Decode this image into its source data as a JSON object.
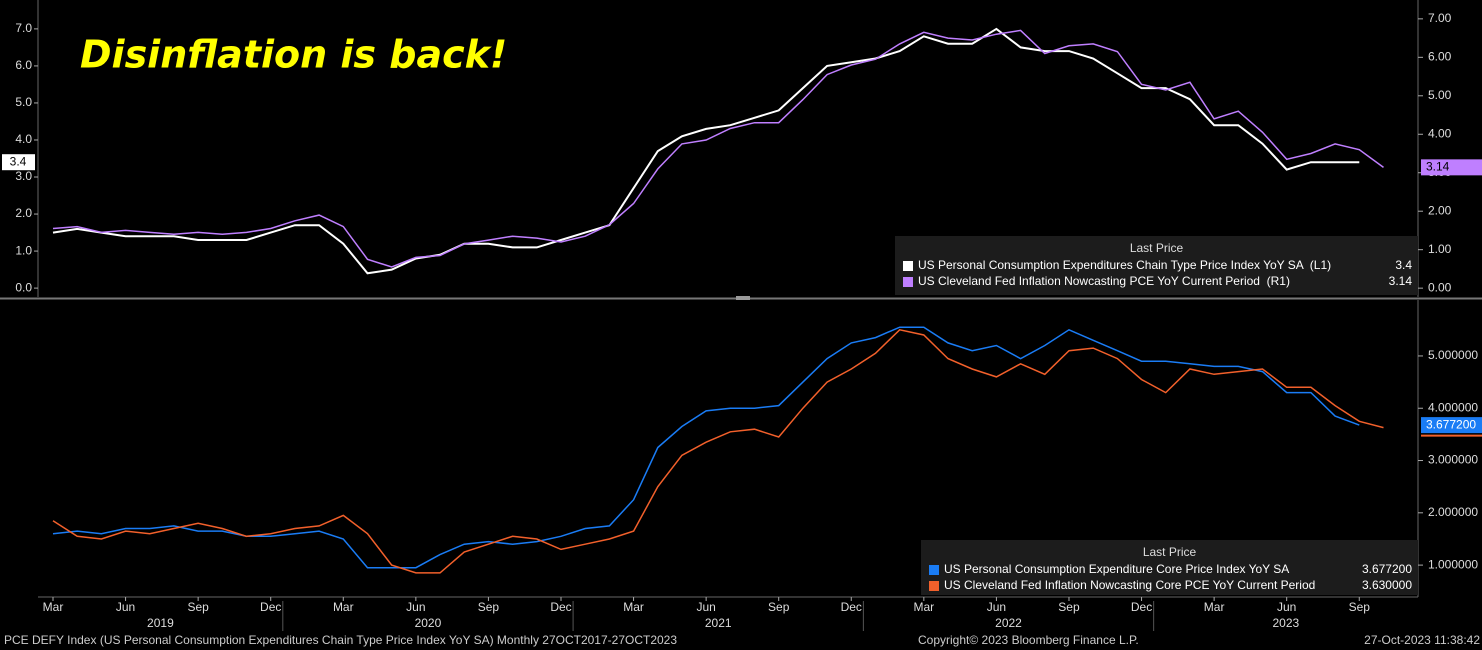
{
  "chart_data": [
    {
      "type": "line",
      "annotation": "Disinflation is back!",
      "x": [
        "2019-03",
        "2019-04",
        "2019-05",
        "2019-06",
        "2019-07",
        "2019-08",
        "2019-09",
        "2019-10",
        "2019-11",
        "2019-12",
        "2020-01",
        "2020-02",
        "2020-03",
        "2020-04",
        "2020-05",
        "2020-06",
        "2020-07",
        "2020-08",
        "2020-09",
        "2020-10",
        "2020-11",
        "2020-12",
        "2021-01",
        "2021-02",
        "2021-03",
        "2021-04",
        "2021-05",
        "2021-06",
        "2021-07",
        "2021-08",
        "2021-09",
        "2021-10",
        "2021-11",
        "2021-12",
        "2022-01",
        "2022-02",
        "2022-03",
        "2022-04",
        "2022-05",
        "2022-06",
        "2022-07",
        "2022-08",
        "2022-09",
        "2022-10",
        "2022-11",
        "2022-12",
        "2023-01",
        "2023-02",
        "2023-03",
        "2023-04",
        "2023-05",
        "2023-06",
        "2023-07",
        "2023-08",
        "2023-09",
        "2023-10"
      ],
      "ylim": [
        -0.24,
        7.78
      ],
      "yticks": [
        {
          "value": 0,
          "label": "0.0"
        },
        {
          "value": 1,
          "label": "1.0"
        },
        {
          "value": 2,
          "label": "2.0"
        },
        {
          "value": 3,
          "label": "3.0"
        },
        {
          "value": 4,
          "label": "4.0"
        },
        {
          "value": 5,
          "label": "5.0"
        },
        {
          "value": 6,
          "label": "6.0"
        },
        {
          "value": 7,
          "label": "7.0"
        }
      ],
      "y2lim": [
        -0.23,
        7.49
      ],
      "y2ticks": [
        {
          "value": 0,
          "label": "0.00"
        },
        {
          "value": 1,
          "label": "1.00"
        },
        {
          "value": 2,
          "label": "2.00"
        },
        {
          "value": 3,
          "label": "3.00"
        },
        {
          "value": 4,
          "label": "4.00"
        },
        {
          "value": 5,
          "label": "5.00"
        },
        {
          "value": 6,
          "label": "6.00"
        },
        {
          "value": 7,
          "label": "7.00"
        }
      ],
      "legend_title": "Last Price",
      "series": [
        {
          "name": "US Personal Consumption Expenditures Chain Type Price Index YoY SA  (L1)",
          "color": "#ffffff",
          "axis": "y",
          "last_label": "3.4",
          "values": [
            1.5,
            1.6,
            1.5,
            1.4,
            1.4,
            1.4,
            1.3,
            1.3,
            1.3,
            1.5,
            1.7,
            1.7,
            1.2,
            0.4,
            0.5,
            0.8,
            0.9,
            1.2,
            1.2,
            1.1,
            1.1,
            1.3,
            1.5,
            1.7,
            2.7,
            3.7,
            4.1,
            4.3,
            4.4,
            4.6,
            4.8,
            5.4,
            6.0,
            6.1,
            6.2,
            6.4,
            6.8,
            6.6,
            6.6,
            7.0,
            6.5,
            6.4,
            6.4,
            6.2,
            5.8,
            5.4,
            5.4,
            5.1,
            4.4,
            4.4,
            3.9,
            3.2,
            3.4,
            3.4,
            3.4,
            null
          ]
        },
        {
          "name": "US Cleveland Fed Inflation Nowcasting PCE YoY Current Period  (R1)",
          "color": "#bf7fff",
          "axis": "y2",
          "last_label": "3.14",
          "values": [
            1.55,
            1.6,
            1.45,
            1.5,
            1.45,
            1.4,
            1.45,
            1.4,
            1.45,
            1.55,
            1.75,
            1.9,
            1.6,
            0.75,
            0.55,
            0.8,
            0.85,
            1.15,
            1.25,
            1.35,
            1.3,
            1.2,
            1.35,
            1.65,
            2.2,
            3.1,
            3.75,
            3.85,
            4.15,
            4.3,
            4.3,
            4.9,
            5.55,
            5.8,
            5.95,
            6.35,
            6.65,
            6.5,
            6.45,
            6.6,
            6.7,
            6.1,
            6.3,
            6.35,
            6.15,
            5.3,
            5.15,
            5.35,
            4.4,
            4.6,
            4.05,
            3.35,
            3.5,
            3.75,
            3.6,
            3.14
          ]
        }
      ]
    },
    {
      "type": "line",
      "x": [
        "2019-03",
        "2019-04",
        "2019-05",
        "2019-06",
        "2019-07",
        "2019-08",
        "2019-09",
        "2019-10",
        "2019-11",
        "2019-12",
        "2020-01",
        "2020-02",
        "2020-03",
        "2020-04",
        "2020-05",
        "2020-06",
        "2020-07",
        "2020-08",
        "2020-09",
        "2020-10",
        "2020-11",
        "2020-12",
        "2021-01",
        "2021-02",
        "2021-03",
        "2021-04",
        "2021-05",
        "2021-06",
        "2021-07",
        "2021-08",
        "2021-09",
        "2021-10",
        "2021-11",
        "2021-12",
        "2022-01",
        "2022-02",
        "2022-03",
        "2022-04",
        "2022-05",
        "2022-06",
        "2022-07",
        "2022-08",
        "2022-09",
        "2022-10",
        "2022-11",
        "2022-12",
        "2023-01",
        "2023-02",
        "2023-03",
        "2023-04",
        "2023-05",
        "2023-06",
        "2023-07",
        "2023-08",
        "2023-09",
        "2023-10"
      ],
      "y2lim": [
        0.39,
        6.07
      ],
      "y2ticks": [
        {
          "value": 1,
          "label": "1.000000"
        },
        {
          "value": 2,
          "label": "2.000000"
        },
        {
          "value": 3,
          "label": "3.000000"
        },
        {
          "value": 4,
          "label": "4.000000"
        },
        {
          "value": 5,
          "label": "5.000000"
        }
      ],
      "xticks": [
        {
          "value": "2019-03",
          "label": "Mar"
        },
        {
          "value": "2019-06",
          "label": "Jun"
        },
        {
          "value": "2019-09",
          "label": "Sep"
        },
        {
          "value": "2019-12",
          "label": "Dec"
        },
        {
          "value": "2020-03",
          "label": "Mar"
        },
        {
          "value": "2020-06",
          "label": "Jun"
        },
        {
          "value": "2020-09",
          "label": "Sep"
        },
        {
          "value": "2020-12",
          "label": "Dec"
        },
        {
          "value": "2021-03",
          "label": "Mar"
        },
        {
          "value": "2021-06",
          "label": "Jun"
        },
        {
          "value": "2021-09",
          "label": "Sep"
        },
        {
          "value": "2021-12",
          "label": "Dec"
        },
        {
          "value": "2022-03",
          "label": "Mar"
        },
        {
          "value": "2022-06",
          "label": "Jun"
        },
        {
          "value": "2022-09",
          "label": "Sep"
        },
        {
          "value": "2022-12",
          "label": "Dec"
        },
        {
          "value": "2023-03",
          "label": "Mar"
        },
        {
          "value": "2023-06",
          "label": "Jun"
        },
        {
          "value": "2023-09",
          "label": "Sep"
        }
      ],
      "years": [
        "2019",
        "2020",
        "2021",
        "2022",
        "2023"
      ],
      "legend_title": "Last Price",
      "series": [
        {
          "name": "US Personal Consumption Expenditure Core Price Index YoY SA",
          "color": "#1a7cf5",
          "axis": "y2",
          "last_label": "3.677200",
          "values": [
            1.6,
            1.65,
            1.6,
            1.7,
            1.7,
            1.75,
            1.65,
            1.65,
            1.55,
            1.55,
            1.6,
            1.65,
            1.5,
            0.95,
            0.95,
            0.95,
            1.2,
            1.4,
            1.45,
            1.4,
            1.45,
            1.55,
            1.7,
            1.75,
            2.25,
            3.25,
            3.65,
            3.95,
            4.0,
            4.0,
            4.05,
            4.5,
            4.95,
            5.25,
            5.35,
            5.55,
            5.55,
            5.25,
            5.1,
            5.2,
            4.95,
            5.2,
            5.5,
            5.3,
            5.1,
            4.9,
            4.9,
            4.85,
            4.8,
            4.8,
            4.7,
            4.3,
            4.3,
            3.85,
            3.6772,
            null
          ]
        },
        {
          "name": "US Cleveland Fed Inflation Nowcasting Core PCE YoY Current Period",
          "color": "#f2602b",
          "axis": "y2",
          "last_label": "3.630000",
          "values": [
            1.85,
            1.55,
            1.5,
            1.65,
            1.6,
            1.7,
            1.8,
            1.7,
            1.55,
            1.6,
            1.7,
            1.75,
            1.95,
            1.6,
            1.0,
            0.85,
            0.85,
            1.25,
            1.4,
            1.55,
            1.5,
            1.3,
            1.4,
            1.5,
            1.65,
            2.5,
            3.1,
            3.35,
            3.55,
            3.6,
            3.45,
            4.0,
            4.5,
            4.75,
            5.05,
            5.5,
            5.4,
            4.95,
            4.75,
            4.6,
            4.85,
            4.65,
            5.1,
            5.15,
            4.95,
            4.55,
            4.3,
            4.75,
            4.65,
            4.7,
            4.75,
            4.4,
            4.4,
            4.05,
            3.75,
            3.63
          ]
        }
      ]
    }
  ],
  "footer": {
    "source": "PCE DEFY Index (US Personal Consumption Expenditures Chain Type Price Index YoY SA)  Monthly 27OCT2017-27OCT2023",
    "copyright": "Copyright© 2023 Bloomberg Finance L.P.",
    "timestamp": "27-Oct-2023 11:38:42"
  }
}
